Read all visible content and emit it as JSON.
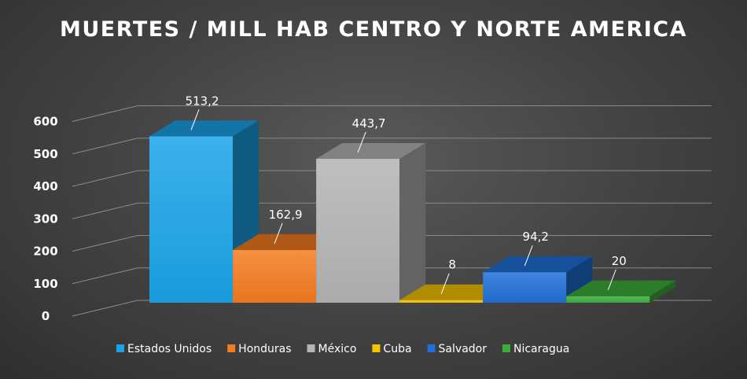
{
  "chart_data": {
    "type": "bar",
    "title": "MUERTES / MILL HAB CENTRO  Y NORTE AMERICA",
    "xlabel": "",
    "ylabel": "",
    "ylim": [
      0,
      600
    ],
    "yticks": [
      0,
      100,
      200,
      300,
      400,
      500,
      600
    ],
    "grid": true,
    "legend": "bottom",
    "categories": [
      "Estados Unidos",
      "Honduras",
      "México",
      "Cuba",
      "Salvador",
      "Nicaragua"
    ],
    "values": [
      513.2,
      162.9,
      443.7,
      8,
      94.2,
      20
    ],
    "data_labels": [
      "513,2",
      "162,9",
      "443,7",
      "8",
      "94,2",
      "20"
    ],
    "colors": [
      "#1aa3e8",
      "#f47b20",
      "#b4b4b4",
      "#f5c400",
      "#1f6fd6",
      "#3cae3a"
    ]
  }
}
